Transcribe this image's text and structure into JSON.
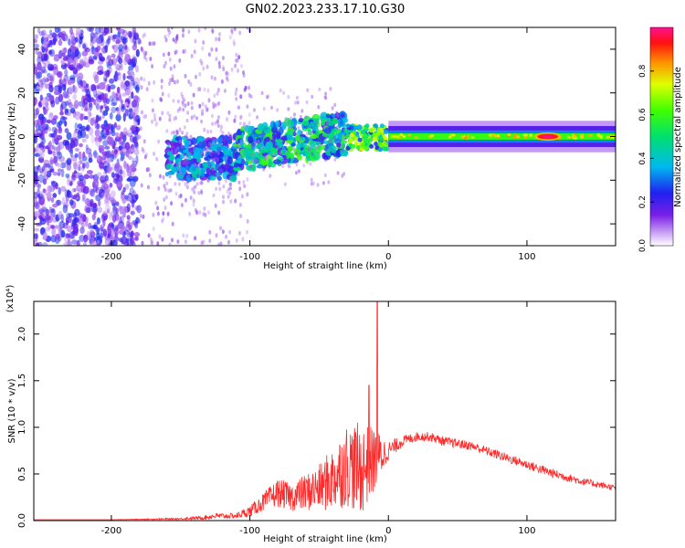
{
  "title": "GN02.2023.233.17.10.G30",
  "colors": {
    "snr_line": "#ff2a2a",
    "frame": "#000000",
    "background": "#ffffff"
  },
  "colorbar": {
    "label": "Normalized spectral amplitude",
    "range": [
      0.0,
      1.0
    ],
    "ticks": [
      "0.0",
      "0.2",
      "0.4",
      "0.6",
      "0.8"
    ],
    "colormap": "rainbow (white-violet-blue-cyan-green-yellow-red-magenta)"
  },
  "chart_data": [
    {
      "type": "heatmap",
      "xlabel": "Height of straight line (km)",
      "ylabel": "Frequency (Hz)",
      "xlim": [
        -256,
        164
      ],
      "ylim": [
        -50,
        50
      ],
      "xticks": [
        "-200",
        "-100",
        "0",
        "100"
      ],
      "yticks": [
        "-40",
        "-20",
        "0",
        "20",
        "40"
      ],
      "features": [
        {
          "x_range": [
            -256,
            -180
          ],
          "freq_range": [
            -50,
            50
          ],
          "amplitude": 0.15,
          "pattern": "scattered noise"
        },
        {
          "x_range": [
            -160,
            -110
          ],
          "freq_range": [
            -20,
            5
          ],
          "amplitude": 0.25,
          "pattern": "cluster"
        },
        {
          "x_range": [
            -110,
            -30
          ],
          "freq_range": [
            -15,
            10
          ],
          "amplitude": 0.35,
          "pattern": "rising band"
        },
        {
          "x_range": [
            -30,
            0
          ],
          "freq_range": [
            -6,
            5
          ],
          "amplitude": 0.55,
          "pattern": "narrow band"
        },
        {
          "x_range": [
            0,
            164
          ],
          "freq_range": [
            -4,
            4
          ],
          "amplitude": 0.6,
          "pattern": "steady band"
        },
        {
          "x_range": [
            105,
            125
          ],
          "freq_range": [
            -1,
            1
          ],
          "amplitude": 0.98,
          "pattern": "peak"
        }
      ]
    },
    {
      "type": "line",
      "xlabel": "Height of straight line (km)",
      "ylabel": "SNR (10 * v/v)",
      "y_exponent": "(x10⁴)",
      "xlim": [
        -256,
        164
      ],
      "ylim": [
        0,
        2.35
      ],
      "xticks": [
        "-200",
        "-100",
        "0",
        "100"
      ],
      "yticks": [
        "0.0",
        "0.5",
        "1.0",
        "1.5",
        "2.0"
      ],
      "envelope": {
        "x": [
          -256,
          -200,
          -150,
          -135,
          -125,
          -110,
          -100,
          -90,
          -80,
          -70,
          -60,
          -50,
          -40,
          -30,
          -20,
          -10,
          0,
          10,
          20,
          30,
          40,
          60,
          80,
          100,
          120,
          140,
          164
        ],
        "mean": [
          0.01,
          0.01,
          0.02,
          0.03,
          0.05,
          0.05,
          0.1,
          0.2,
          0.3,
          0.25,
          0.3,
          0.35,
          0.45,
          0.6,
          0.55,
          0.65,
          0.75,
          0.85,
          0.9,
          0.9,
          0.85,
          0.8,
          0.7,
          0.6,
          0.5,
          0.42,
          0.35
        ],
        "amp": [
          0.0,
          0.0,
          0.01,
          0.02,
          0.03,
          0.03,
          0.06,
          0.1,
          0.15,
          0.15,
          0.2,
          0.25,
          0.35,
          0.45,
          0.5,
          0.35,
          0.1,
          0.06,
          0.05,
          0.05,
          0.05,
          0.05,
          0.05,
          0.05,
          0.05,
          0.04,
          0.03
        ]
      },
      "peaks": [
        {
          "x": -14,
          "y": 1.45
        },
        {
          "x": -8,
          "y": 2.35
        }
      ]
    }
  ]
}
